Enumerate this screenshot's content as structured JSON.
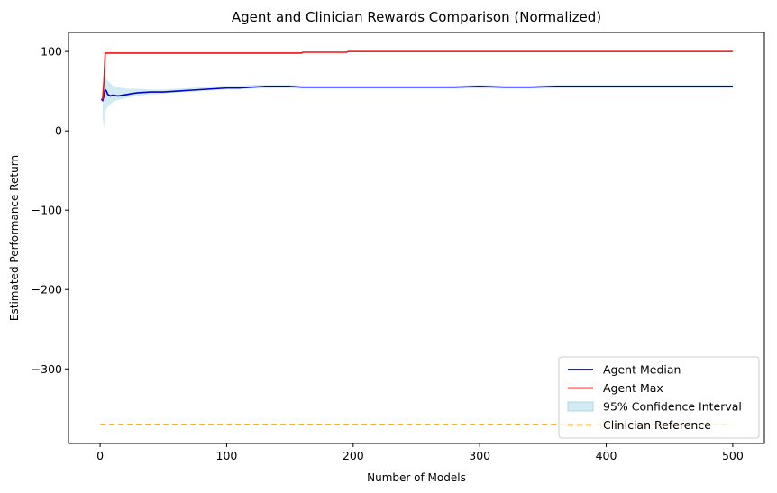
{
  "chart_data": {
    "type": "line",
    "title": "Agent and Clinician Rewards Comparison (Normalized)",
    "xlabel": "Number of Models",
    "ylabel": "Estimated Performance Return",
    "xlim": [
      -25,
      525
    ],
    "ylim": [
      -394,
      124
    ],
    "x_ticks": [
      0,
      100,
      200,
      300,
      400,
      500
    ],
    "x_tick_labels": [
      "0",
      "100",
      "200",
      "300",
      "400",
      "500"
    ],
    "y_ticks": [
      100,
      0,
      -100,
      -200,
      -300
    ],
    "y_tick_labels": [
      "100",
      "0",
      "−100",
      "−200",
      "−300"
    ],
    "grid": false,
    "legend_position": "lower right",
    "legend": [
      {
        "label": "Agent Median",
        "kind": "line",
        "color": "#0000cc"
      },
      {
        "label": "Agent Max",
        "kind": "line",
        "color": "#ee1111"
      },
      {
        "label": "95% Confidence Interval",
        "kind": "patch",
        "color": "#add8e6"
      },
      {
        "label": "Clinician Reference",
        "kind": "dashed",
        "color": "#ffa500"
      }
    ],
    "series": [
      {
        "name": "Agent Median",
        "color": "#0000cc",
        "x": [
          1,
          2,
          3,
          4,
          5,
          6,
          8,
          10,
          14,
          18,
          22,
          25,
          30,
          40,
          50,
          60,
          70,
          80,
          90,
          100,
          110,
          120,
          130,
          140,
          150,
          160,
          170,
          180,
          190,
          200,
          220,
          240,
          260,
          280,
          300,
          320,
          340,
          360,
          380,
          400,
          420,
          440,
          460,
          480,
          500
        ],
        "y": [
          40,
          38,
          44,
          52,
          50,
          46,
          44,
          45,
          44,
          45,
          46,
          47,
          48,
          49,
          49,
          50,
          51,
          52,
          53,
          54,
          54,
          55,
          56,
          56,
          56,
          55,
          55,
          55,
          55,
          55,
          55,
          55,
          55,
          55,
          56,
          55,
          55,
          56,
          56,
          56,
          56,
          56,
          56,
          56,
          56
        ]
      },
      {
        "name": "Agent Max",
        "color": "#ee1111",
        "x": [
          1,
          2,
          3,
          4,
          159,
          160,
          195,
          196,
          500
        ],
        "y": [
          40,
          40,
          62,
          98,
          98,
          99,
          99,
          100,
          100
        ]
      },
      {
        "name": "Clinician Reference",
        "color": "#ffa500",
        "style": "dashed",
        "x": [
          0,
          500
        ],
        "y": [
          -370,
          -370
        ]
      }
    ],
    "confidence_interval": {
      "name": "95% Confidence Interval",
      "color": "#add8e6",
      "x": [
        2,
        3,
        4,
        5,
        6,
        8,
        10,
        14,
        18,
        22,
        25,
        30,
        40,
        50,
        60,
        70,
        80,
        90,
        100,
        110,
        120,
        130,
        140,
        150,
        160,
        170,
        180,
        190,
        200,
        220,
        240,
        260,
        280,
        300,
        320,
        340,
        360,
        380,
        400,
        420,
        440,
        460,
        480,
        500
      ],
      "lower": [
        18,
        2,
        22,
        28,
        30,
        33,
        36,
        39,
        40,
        42,
        43,
        44,
        46,
        47,
        48,
        49,
        50,
        51,
        52,
        52,
        53,
        54,
        54,
        54,
        53,
        53,
        53,
        53,
        53,
        53,
        53,
        53,
        53,
        54,
        53,
        53,
        54,
        54,
        54,
        54,
        54,
        54,
        54,
        54
      ],
      "upper": [
        52,
        62,
        72,
        66,
        63,
        60,
        57,
        55,
        54,
        53,
        53,
        53,
        52,
        52,
        53,
        54,
        55,
        56,
        57,
        57,
        58,
        58,
        58,
        58,
        57,
        57,
        57,
        57,
        57,
        57,
        57,
        57,
        57,
        58,
        57,
        57,
        58,
        58,
        58,
        58,
        58,
        58,
        58,
        58
      ]
    }
  }
}
